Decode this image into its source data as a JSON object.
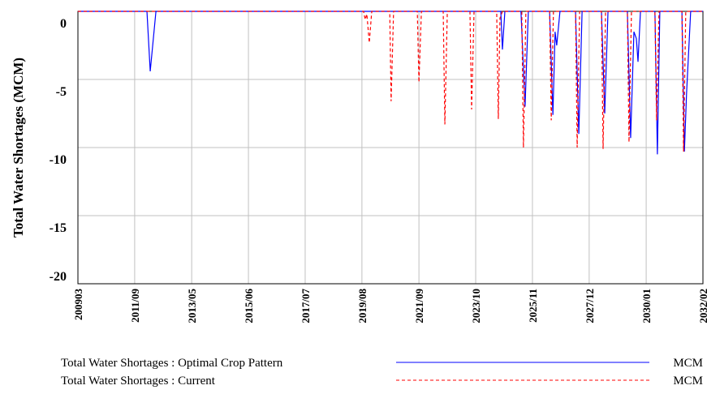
{
  "chart_data": {
    "type": "line",
    "ylabel": "Total Water Shortages (MCM)",
    "ylim": [
      -20,
      0
    ],
    "yticks": [
      0,
      -5,
      -10,
      -15,
      -20
    ],
    "xlim": [
      2009.17,
      2032.08
    ],
    "xticks": [
      {
        "value": 2009.17,
        "label": "200903"
      },
      {
        "value": 2011.25,
        "label": "2011/09"
      },
      {
        "value": 2013.34,
        "label": "2013/05"
      },
      {
        "value": 2015.42,
        "label": "2015/06"
      },
      {
        "value": 2017.5,
        "label": "2017/07"
      },
      {
        "value": 2019.58,
        "label": "2019/08"
      },
      {
        "value": 2021.67,
        "label": "2021/09"
      },
      {
        "value": 2023.75,
        "label": "2023/10"
      },
      {
        "value": 2025.83,
        "label": "2025/11"
      },
      {
        "value": 2027.91,
        "label": "2027/12"
      },
      {
        "value": 2030.0,
        "label": "2030/01"
      },
      {
        "value": 2032.08,
        "label": "2032/02"
      }
    ],
    "grid": true,
    "series": [
      {
        "name": "Total Water Shortages : Optimal Crop Pattern",
        "unit": "MCM",
        "color": "#0000ff",
        "dash": false,
        "x": [
          2009.17,
          2011.7,
          2011.82,
          2012.03,
          2024.67,
          2024.73,
          2024.82,
          2025.41,
          2025.56,
          2025.68,
          2026.46,
          2026.58,
          2026.66,
          2026.72,
          2026.84,
          2027.41,
          2027.53,
          2027.65,
          2028.36,
          2028.48,
          2028.6,
          2029.31,
          2029.43,
          2029.55,
          2029.64,
          2029.7,
          2029.79,
          2030.32,
          2030.41,
          2030.5,
          2031.31,
          2031.4,
          2031.48,
          2031.63,
          2032.08
        ],
        "values": [
          0,
          0,
          -4.4,
          0,
          0,
          -2.8,
          0,
          0,
          -7,
          0,
          0,
          -7.6,
          -1.5,
          -2.5,
          0,
          0,
          -9,
          0,
          0,
          -7.5,
          0,
          0,
          -9.3,
          -1.5,
          -2,
          -3.7,
          0,
          0,
          -10.5,
          0,
          0,
          -10.3,
          -6,
          0,
          0
        ]
      },
      {
        "name": "Total Water Shortages : Current",
        "unit": "MCM",
        "color": "#ff0000",
        "dash": true,
        "x": [
          2009.17,
          2019.64,
          2019.7,
          2019.76,
          2019.85,
          2019.94,
          2020.6,
          2020.65,
          2020.74,
          2021.61,
          2021.67,
          2021.76,
          2022.56,
          2022.62,
          2022.71,
          2023.54,
          2023.6,
          2023.69,
          2024.52,
          2024.58,
          2024.64,
          2024.73,
          2025.44,
          2025.5,
          2025.59,
          2026.46,
          2026.52,
          2026.6,
          2027.41,
          2027.47,
          2027.56,
          2028.36,
          2028.42,
          2028.51,
          2029.31,
          2029.37,
          2029.46,
          2030.32,
          2030.38,
          2030.47,
          2031.31,
          2031.37,
          2031.45,
          2032.08
        ],
        "values": [
          0,
          0,
          -0.6,
          -0.2,
          -2.3,
          0,
          0,
          -6.6,
          0,
          0,
          -5.2,
          0,
          0,
          -8.3,
          0,
          0,
          -7.2,
          0,
          0,
          -7.9,
          -0.5,
          0,
          0,
          -10,
          0,
          0,
          -8,
          0,
          0,
          -10,
          0,
          0,
          -10.1,
          0,
          0,
          -9.6,
          0,
          0,
          -8,
          0,
          0,
          -10.3,
          0,
          0
        ]
      }
    ]
  }
}
